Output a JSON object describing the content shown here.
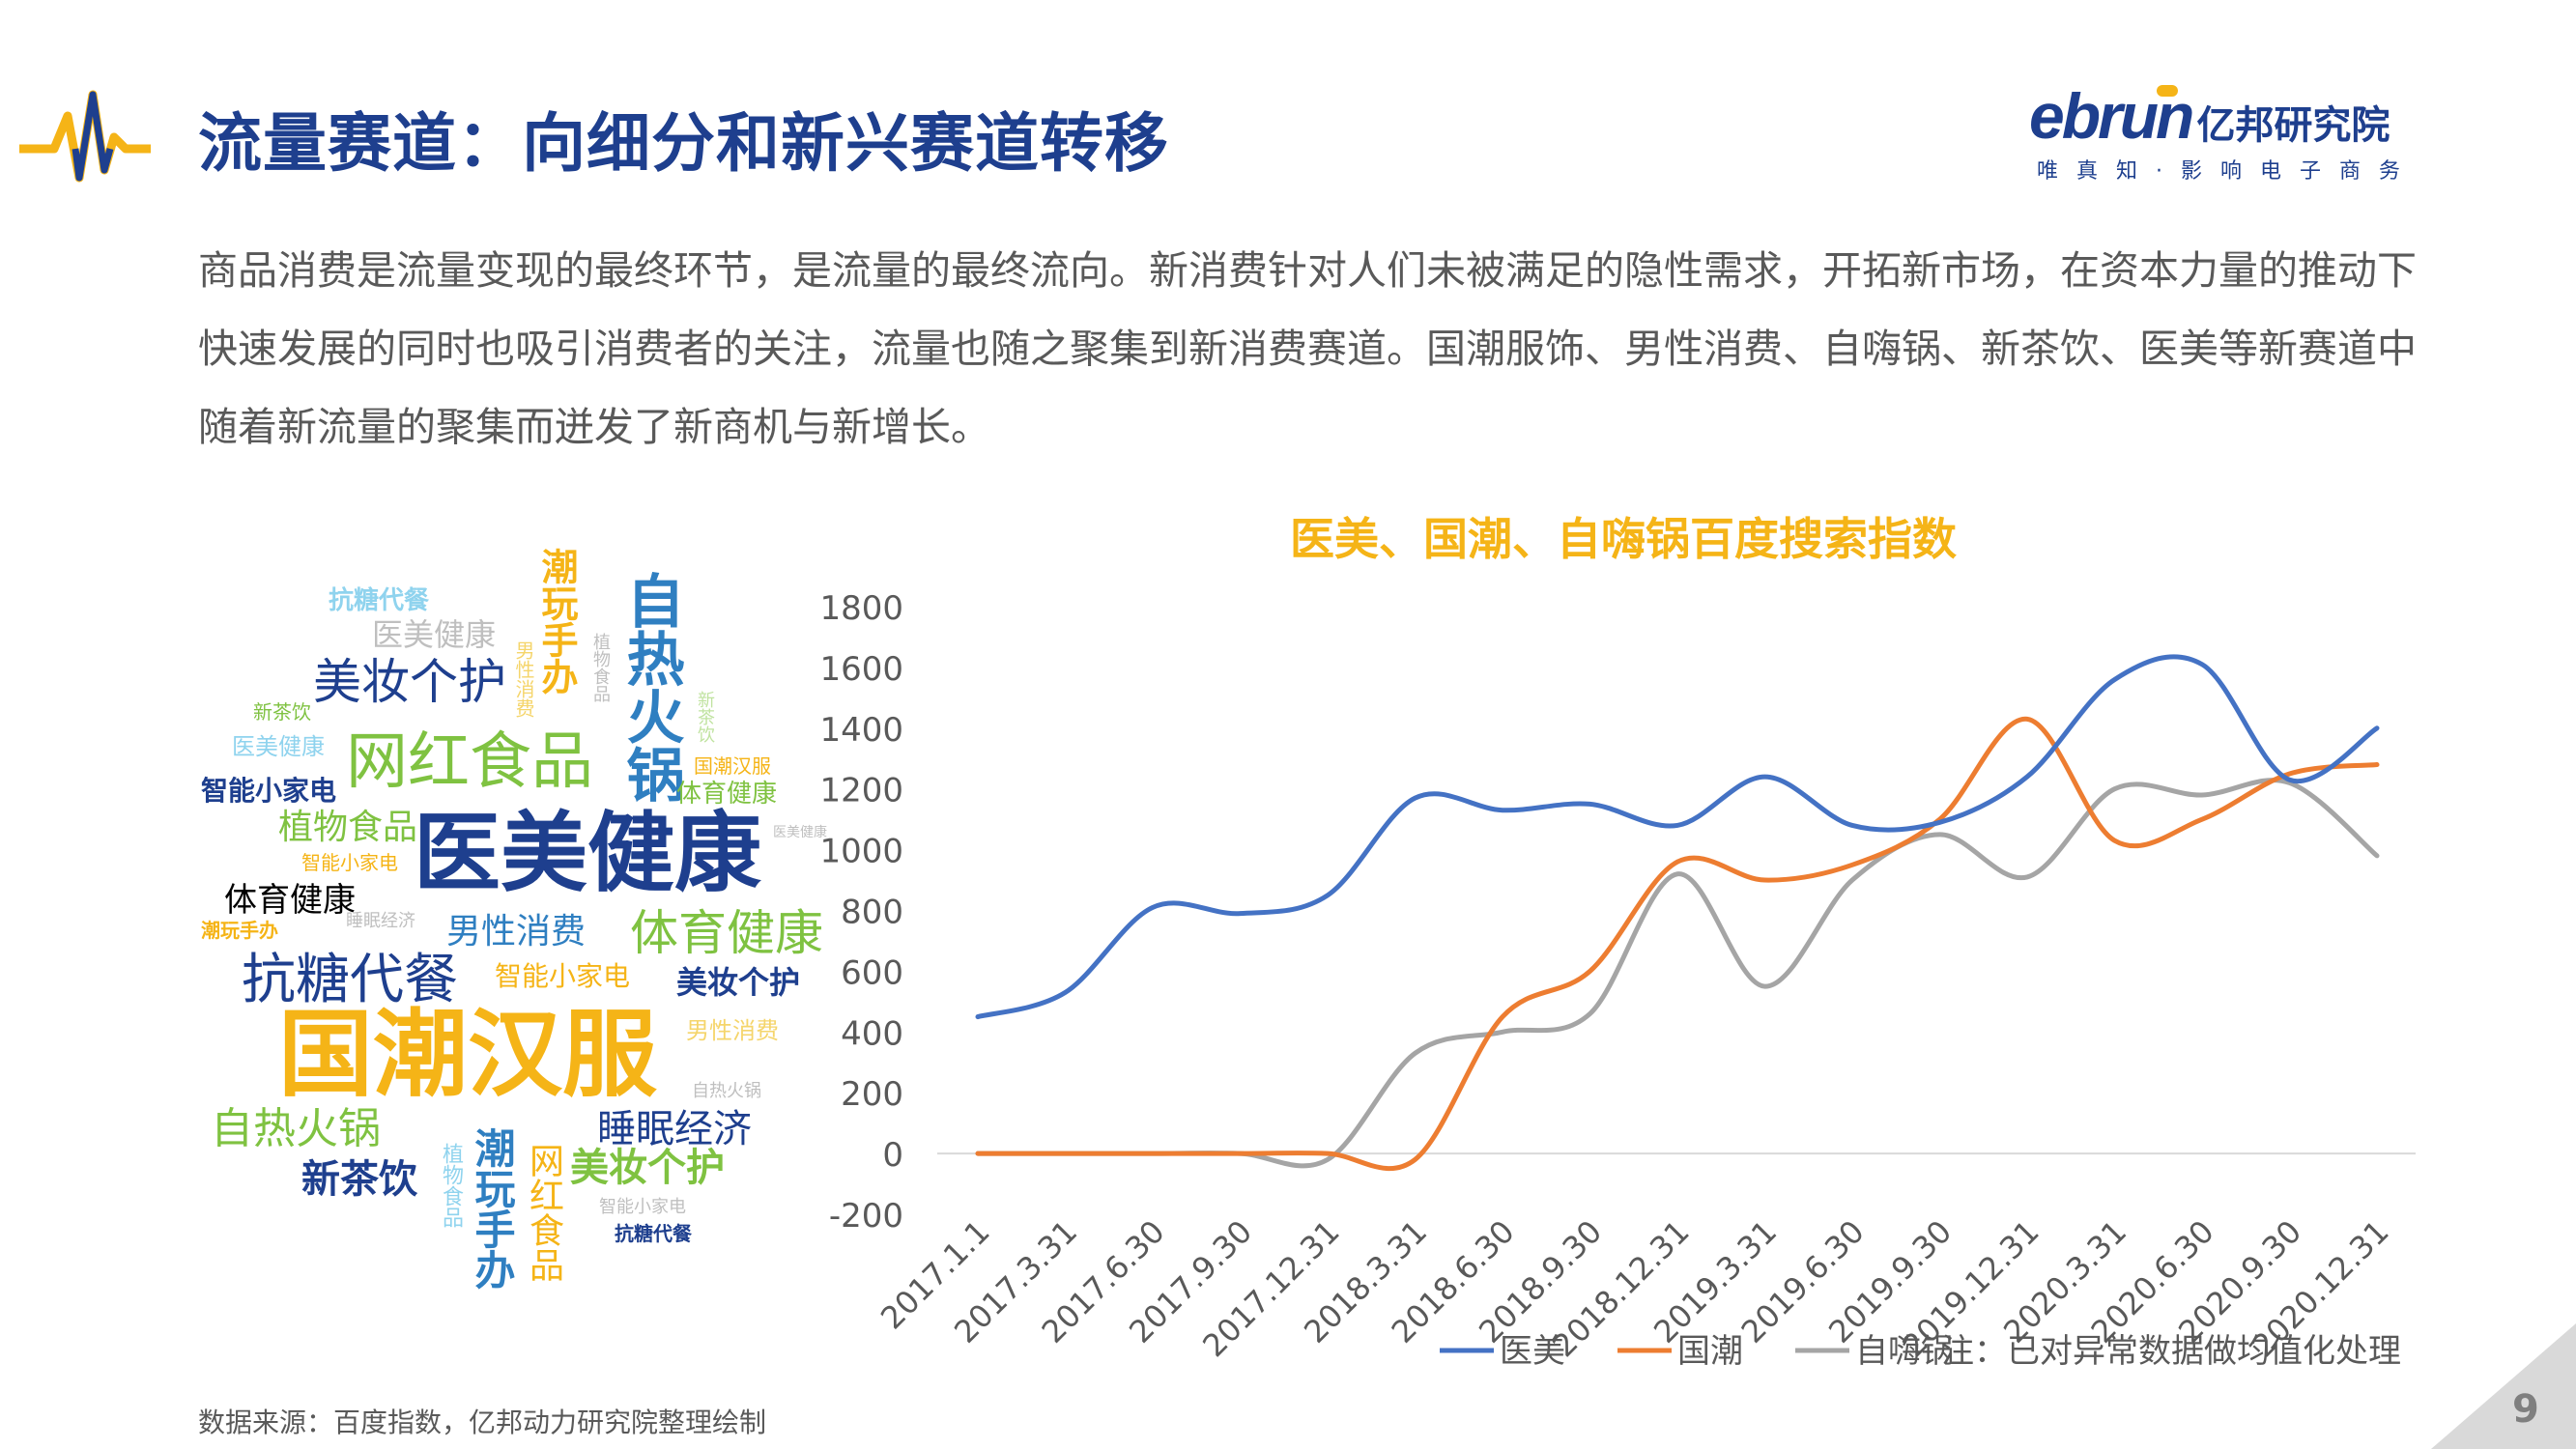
{
  "header": {
    "title": "流量赛道：向细分和新兴赛道转移",
    "logo_main": "ebrun",
    "logo_cn": "亿邦研究院",
    "logo_tagline": "唯 真 知 · 影 响 电 子 商 务"
  },
  "intro": "商品消费是流量变现的最终环节，是流量的最终流向。新消费针对人们未被满足的隐性需求，开拓新市场，在资本力量的推动下快速发展的同时也吸引消费者的关注，流量也随之聚集到新消费赛道。国潮服饰、男性消费、自嗨锅、新茶饮、医美等新赛道中随着新流量的聚集而迸发了新商机与新增长。",
  "word_cloud": [
    {
      "text": "抗糖代餐",
      "color": "#8fd3ee"
    },
    {
      "text": "医美健康",
      "color": "#bfbfbf"
    },
    {
      "text": "潮玩手办",
      "color": "#f5b417"
    },
    {
      "text": "美妆个护",
      "color": "#1e3f8e"
    },
    {
      "text": "植物食品",
      "color": "#bfbfbf"
    },
    {
      "text": "自热火锅",
      "color": "#2f7fc1"
    },
    {
      "text": "男性消费",
      "color": "#f5d56b"
    },
    {
      "text": "新茶饮",
      "color": "#7fc241"
    },
    {
      "text": "新茶饮",
      "color": "#c0e3a0"
    },
    {
      "text": "网红食品",
      "color": "#7fc241"
    },
    {
      "text": "医美健康",
      "color": "#8fd3ee"
    },
    {
      "text": "国潮汉服",
      "color": "#f5b417"
    },
    {
      "text": "体育健康",
      "color": "#7fc241"
    },
    {
      "text": "智能小家电",
      "color": "#1e3f8e"
    },
    {
      "text": "植物食品",
      "color": "#7fc241"
    },
    {
      "text": "医美健康",
      "color": "#1e3f8e"
    },
    {
      "text": "智能小家电",
      "color": "#f5b417"
    },
    {
      "text": "体育健康",
      "color": "#000000"
    },
    {
      "text": "睡眠经济",
      "color": "#bfbfbf"
    },
    {
      "text": "潮玩手办",
      "color": "#f5b417"
    },
    {
      "text": "男性消费",
      "color": "#2f7fc1"
    },
    {
      "text": "体育健康",
      "color": "#7fc241"
    },
    {
      "text": "抗糖代餐",
      "color": "#1e3f8e"
    },
    {
      "text": "智能小家电",
      "color": "#f5b417"
    },
    {
      "text": "美妆个护",
      "color": "#1e3f8e"
    },
    {
      "text": "国潮汉服",
      "color": "#f5b417"
    },
    {
      "text": "男性消费",
      "color": "#f5d56b"
    },
    {
      "text": "自热火锅",
      "color": "#bfbfbf"
    },
    {
      "text": "自热火锅",
      "color": "#7fc241"
    },
    {
      "text": "睡眠经济",
      "color": "#1e3f8e"
    },
    {
      "text": "新茶饮",
      "color": "#1e3f8e"
    },
    {
      "text": "植物食品",
      "color": "#8fd3ee"
    },
    {
      "text": "潮玩手办",
      "color": "#2f7fc1"
    },
    {
      "text": "网红食品",
      "color": "#f5b417"
    },
    {
      "text": "美妆个护",
      "color": "#7fc241"
    },
    {
      "text": "智能小家电",
      "color": "#bfbfbf"
    },
    {
      "text": "抗糖代餐",
      "color": "#1e3f8e"
    },
    {
      "text": "医美健康",
      "color": "#bfbfbf"
    }
  ],
  "chart_data": {
    "type": "line",
    "title": "医美、国潮、自嗨锅百度搜索指数",
    "categories": [
      "2017.1.1",
      "2017.3.31",
      "2017.6.30",
      "2017.9.30",
      "2017.12.31",
      "2018.3.31",
      "2018.6.30",
      "2018.9.30",
      "2018.12.31",
      "2019.3.31",
      "2019.6.30",
      "2019.9.30",
      "2019.12.31",
      "2020.3.31",
      "2020.6.30",
      "2020.9.30",
      "2020.12.31"
    ],
    "series": [
      {
        "name": "医美",
        "color": "#4472c4",
        "values": [
          450,
          530,
          810,
          790,
          850,
          1170,
          1130,
          1150,
          1080,
          1240,
          1080,
          1090,
          1240,
          1560,
          1610,
          1230,
          1400
        ]
      },
      {
        "name": "国潮",
        "color": "#ed7d31",
        "values": [
          0,
          0,
          0,
          0,
          0,
          -20,
          450,
          600,
          960,
          900,
          950,
          1100,
          1430,
          1030,
          1100,
          1250,
          1280
        ]
      },
      {
        "name": "自嗨锅",
        "color": "#a5a5a5",
        "values": [
          0,
          0,
          0,
          0,
          -20,
          330,
          400,
          460,
          920,
          550,
          900,
          1050,
          910,
          1200,
          1180,
          1220,
          980
        ]
      }
    ],
    "ylim": [
      -200,
      1800
    ],
    "yticks": [
      -200,
      0,
      200,
      400,
      600,
      800,
      1000,
      1200,
      1400,
      1600,
      1800
    ],
    "grid": false,
    "legend": "bottom",
    "note": "注：已对异常数据做均值化处理"
  },
  "footer": {
    "source": "数据来源：百度指数，亿邦动力研究院整理绘制",
    "page_number": "9"
  }
}
